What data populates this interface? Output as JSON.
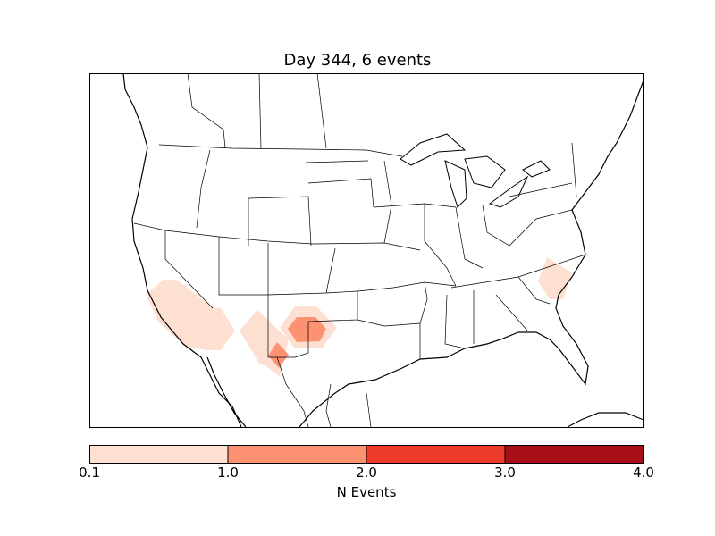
{
  "title": "Day 344, 6 events",
  "colorbar": {
    "label": "N Events",
    "ticks": [
      "0.1",
      "1.0",
      "2.0",
      "3.0",
      "4.0"
    ],
    "colors": [
      "#fee0d2",
      "#fc9272",
      "#ef3b2c",
      "#a50f15"
    ]
  },
  "regions": [
    {
      "name": "california-central-valley",
      "level": "0.1-1.0"
    },
    {
      "name": "arizona-new-mexico",
      "level": "0.1-1.0"
    },
    {
      "name": "west-texas",
      "level": "1.0-2.0"
    },
    {
      "name": "el-paso",
      "level": "1.0-2.0"
    },
    {
      "name": "north-carolina",
      "level": "0.1-1.0"
    }
  ]
}
